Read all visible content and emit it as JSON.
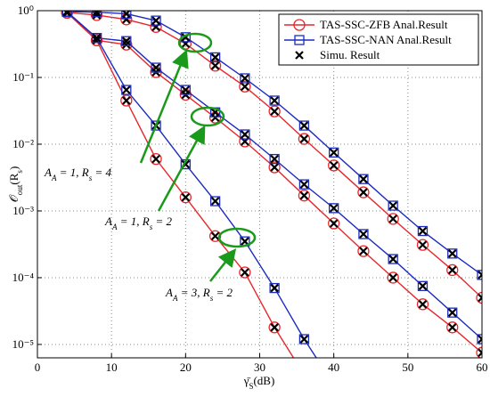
{
  "chart_data": {
    "type": "line",
    "log_y": true,
    "grid": true,
    "legend": "upper right",
    "xlabel": [
      "γ̄",
      "S",
      "(dB)"
    ],
    "ylabel": [
      "𝒪",
      "out",
      "(",
      "R",
      "s",
      ")"
    ],
    "x": [
      4,
      8,
      12,
      16,
      20,
      24,
      28,
      32,
      36,
      40,
      44,
      48,
      52,
      56,
      60
    ],
    "xlim": [
      0,
      60
    ],
    "xticks": [
      0,
      10,
      20,
      30,
      40,
      50,
      60
    ],
    "ylim": [
      6.3e-06,
      1
    ],
    "yticks": [
      {
        "value": 1,
        "label": "10⁰"
      },
      {
        "value": 0.1,
        "label": "10⁻¹"
      },
      {
        "value": 0.01,
        "label": "10⁻²"
      },
      {
        "value": 0.001,
        "label": "10⁻³"
      },
      {
        "value": 0.0001,
        "label": "10⁻⁴"
      },
      {
        "value": 1e-05,
        "label": "10⁻⁵"
      }
    ],
    "series": [
      {
        "name": "TAS-SSC-ZFB Anal.Result",
        "color": "#e8262b",
        "marker": "circle",
        "values": [
          0.94,
          0.86,
          0.74,
          0.57,
          0.32,
          0.15,
          0.073,
          0.031,
          0.012,
          0.0048,
          0.0019,
          0.00076,
          0.00031,
          0.00013,
          5e-05
        ]
      },
      {
        "name": "TAS-SSC-NAN Anal.Result",
        "color": "#1c2bbf",
        "marker": "square",
        "values": [
          0.97,
          0.95,
          0.9,
          0.71,
          0.4,
          0.2,
          0.097,
          0.045,
          0.019,
          0.0075,
          0.003,
          0.0012,
          0.0005,
          0.00023,
          0.00011
        ]
      },
      {
        "color": "#e8262b",
        "marker": "circle",
        "values": [
          0.93,
          0.36,
          0.31,
          0.12,
          0.055,
          0.025,
          0.011,
          0.0045,
          0.0017,
          0.00065,
          0.00025,
          0.0001,
          4e-05,
          1.8e-05,
          7.5e-06
        ]
      },
      {
        "color": "#1c2bbf",
        "marker": "square",
        "values": [
          0.96,
          0.39,
          0.35,
          0.14,
          0.065,
          0.03,
          0.014,
          0.006,
          0.0025,
          0.0011,
          0.00045,
          0.00019,
          7.5e-05,
          3e-05,
          1.2e-05
        ]
      },
      {
        "color": "#e8262b",
        "marker": "circle",
        "values": [
          0.93,
          0.36,
          0.045,
          0.006,
          0.0016,
          0.00042,
          0.00012,
          1.8e-05,
          3.5e-06,
          null,
          null,
          null,
          null,
          null,
          null
        ]
      },
      {
        "color": "#1c2bbf",
        "marker": "square",
        "values": [
          0.96,
          0.39,
          0.065,
          0.019,
          0.005,
          0.0014,
          0.00035,
          7e-05,
          1.2e-05,
          2.5e-06,
          null,
          null,
          null,
          null,
          null
        ]
      }
    ],
    "simulation": {
      "name": "Simu. Result",
      "marker": "x"
    },
    "annotations": [
      [
        "A",
        "A",
        " = 1, ",
        "R",
        "s",
        " = 4"
      ],
      [
        "A",
        "A",
        " = 1, ",
        "R",
        "s",
        " = 2"
      ],
      [
        "A",
        "A",
        " = 3, ",
        "R",
        "s",
        " = 2"
      ]
    ]
  }
}
